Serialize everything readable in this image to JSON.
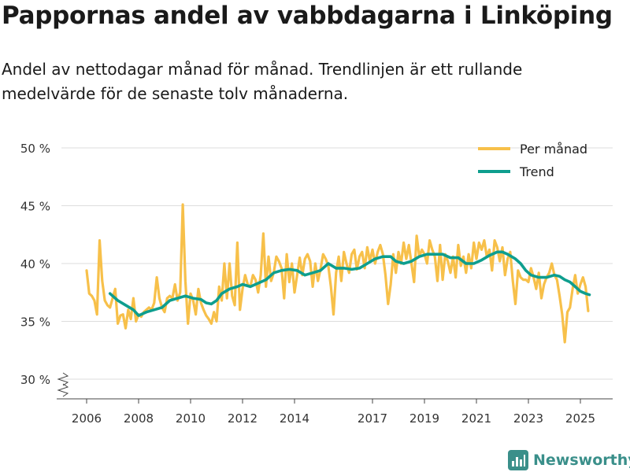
{
  "header": {
    "title": "Pappornas andel av vabbdagarna i Linköping",
    "subtitle": "Andel av nettodagar månad för månad. Trendlinjen är ett rullande medelvärde för de senaste tolv månaderna."
  },
  "brand": {
    "name": "Newsworthy",
    "color": "#3a8f8a"
  },
  "colors": {
    "monthly": "#f7c04a",
    "trend": "#0e9e8e",
    "grid": "#dddddd",
    "axis": "#333333"
  },
  "chart_data": {
    "type": "line",
    "title": "Pappornas andel av vabbdagarna i Linköping",
    "xlabel": "",
    "ylabel": "",
    "ylim": [
      30,
      50
    ],
    "xlim": [
      2005.7,
      2025.9
    ],
    "y_ticks": [
      30,
      35,
      40,
      45,
      50
    ],
    "y_tick_labels": [
      "30 %",
      "35 %",
      "40 %",
      "45 %",
      "50 %"
    ],
    "x_ticks": [
      2006,
      2008,
      2010,
      2012,
      2014,
      2017,
      2019,
      2021,
      2023,
      2025
    ],
    "x_tick_labels": [
      "2006",
      "2008",
      "2010",
      "2012",
      "2014",
      "2017",
      "2019",
      "2021",
      "2023",
      "2025"
    ],
    "grid": true,
    "legend_position": "top-right",
    "y_axis_break": true,
    "series": [
      {
        "name": "Per månad",
        "color": "#f7c04a",
        "points": [
          [
            2006.0,
            39.4
          ],
          [
            2006.1,
            37.4
          ],
          [
            2006.2,
            37.2
          ],
          [
            2006.3,
            36.8
          ],
          [
            2006.4,
            35.6
          ],
          [
            2006.5,
            42.0
          ],
          [
            2006.6,
            38.5
          ],
          [
            2006.7,
            36.8
          ],
          [
            2006.8,
            36.4
          ],
          [
            2006.9,
            36.2
          ],
          [
            2007.0,
            37.0
          ],
          [
            2007.1,
            37.8
          ],
          [
            2007.2,
            34.8
          ],
          [
            2007.3,
            35.5
          ],
          [
            2007.4,
            35.6
          ],
          [
            2007.5,
            34.4
          ],
          [
            2007.6,
            36.0
          ],
          [
            2007.7,
            35.2
          ],
          [
            2007.8,
            37.0
          ],
          [
            2007.9,
            35.0
          ],
          [
            2008.0,
            35.6
          ],
          [
            2008.1,
            35.4
          ],
          [
            2008.2,
            35.8
          ],
          [
            2008.3,
            36.0
          ],
          [
            2008.4,
            36.2
          ],
          [
            2008.5,
            36.0
          ],
          [
            2008.6,
            36.6
          ],
          [
            2008.7,
            38.8
          ],
          [
            2008.8,
            37.0
          ],
          [
            2008.9,
            36.2
          ],
          [
            2009.0,
            35.8
          ],
          [
            2009.1,
            37.0
          ],
          [
            2009.2,
            37.2
          ],
          [
            2009.3,
            37.0
          ],
          [
            2009.4,
            38.2
          ],
          [
            2009.5,
            36.8
          ],
          [
            2009.6,
            37.5
          ],
          [
            2009.7,
            45.1
          ],
          [
            2009.8,
            38.5
          ],
          [
            2009.9,
            34.8
          ],
          [
            2010.0,
            37.4
          ],
          [
            2010.1,
            36.8
          ],
          [
            2010.2,
            35.6
          ],
          [
            2010.3,
            37.8
          ],
          [
            2010.4,
            36.6
          ],
          [
            2010.5,
            36.0
          ],
          [
            2010.6,
            35.5
          ],
          [
            2010.7,
            35.2
          ],
          [
            2010.8,
            34.8
          ],
          [
            2010.9,
            35.8
          ],
          [
            2011.0,
            35.0
          ],
          [
            2011.1,
            38.0
          ],
          [
            2011.2,
            36.8
          ],
          [
            2011.3,
            40.0
          ],
          [
            2011.4,
            37.0
          ],
          [
            2011.5,
            40.0
          ],
          [
            2011.6,
            37.2
          ],
          [
            2011.7,
            36.4
          ],
          [
            2011.8,
            41.8
          ],
          [
            2011.9,
            36.0
          ],
          [
            2012.0,
            37.8
          ],
          [
            2012.1,
            39.0
          ],
          [
            2012.2,
            38.2
          ],
          [
            2012.3,
            38.0
          ],
          [
            2012.4,
            39.0
          ],
          [
            2012.5,
            38.6
          ],
          [
            2012.6,
            37.5
          ],
          [
            2012.7,
            39.0
          ],
          [
            2012.8,
            42.6
          ],
          [
            2012.9,
            38.0
          ],
          [
            2013.0,
            40.6
          ],
          [
            2013.1,
            38.5
          ],
          [
            2013.2,
            39.2
          ],
          [
            2013.3,
            40.6
          ],
          [
            2013.4,
            40.2
          ],
          [
            2013.5,
            39.6
          ],
          [
            2013.6,
            37.0
          ],
          [
            2013.7,
            40.8
          ],
          [
            2013.8,
            38.4
          ],
          [
            2013.9,
            40.0
          ],
          [
            2014.0,
            37.5
          ],
          [
            2014.1,
            39.0
          ],
          [
            2014.2,
            40.5
          ],
          [
            2014.3,
            39.0
          ],
          [
            2014.4,
            40.4
          ],
          [
            2014.5,
            40.8
          ],
          [
            2014.6,
            40.2
          ],
          [
            2014.7,
            38.0
          ],
          [
            2014.8,
            40.0
          ],
          [
            2014.9,
            38.5
          ],
          [
            2015.0,
            39.5
          ],
          [
            2015.1,
            40.8
          ],
          [
            2015.2,
            40.4
          ],
          [
            2015.3,
            39.8
          ],
          [
            2015.4,
            38.0
          ],
          [
            2015.5,
            35.6
          ],
          [
            2015.6,
            39.2
          ],
          [
            2015.7,
            40.6
          ],
          [
            2015.8,
            38.5
          ],
          [
            2015.9,
            41.0
          ],
          [
            2016.0,
            40.0
          ],
          [
            2016.1,
            39.2
          ],
          [
            2016.2,
            40.8
          ],
          [
            2016.3,
            41.2
          ],
          [
            2016.4,
            39.5
          ],
          [
            2016.5,
            40.6
          ],
          [
            2016.6,
            41.0
          ],
          [
            2016.7,
            39.6
          ],
          [
            2016.8,
            41.4
          ],
          [
            2016.9,
            40.2
          ],
          [
            2017.0,
            41.2
          ],
          [
            2017.1,
            40.0
          ],
          [
            2017.2,
            41.0
          ],
          [
            2017.3,
            41.6
          ],
          [
            2017.4,
            40.8
          ],
          [
            2017.5,
            39.0
          ],
          [
            2017.6,
            36.5
          ],
          [
            2017.7,
            38.2
          ],
          [
            2017.8,
            40.8
          ],
          [
            2017.9,
            39.2
          ],
          [
            2018.0,
            41.0
          ],
          [
            2018.1,
            40.0
          ],
          [
            2018.2,
            41.8
          ],
          [
            2018.3,
            40.4
          ],
          [
            2018.4,
            41.6
          ],
          [
            2018.5,
            40.0
          ],
          [
            2018.6,
            38.4
          ],
          [
            2018.7,
            42.4
          ],
          [
            2018.8,
            40.6
          ],
          [
            2018.9,
            41.2
          ],
          [
            2019.0,
            40.8
          ],
          [
            2019.1,
            40.0
          ],
          [
            2019.2,
            42.0
          ],
          [
            2019.3,
            41.2
          ],
          [
            2019.4,
            40.6
          ],
          [
            2019.5,
            38.5
          ],
          [
            2019.6,
            41.6
          ],
          [
            2019.7,
            38.6
          ],
          [
            2019.8,
            40.8
          ],
          [
            2019.9,
            40.2
          ],
          [
            2020.0,
            39.2
          ],
          [
            2020.1,
            40.6
          ],
          [
            2020.2,
            38.8
          ],
          [
            2020.3,
            41.6
          ],
          [
            2020.4,
            39.8
          ],
          [
            2020.5,
            40.6
          ],
          [
            2020.6,
            39.2
          ],
          [
            2020.7,
            40.8
          ],
          [
            2020.8,
            39.6
          ],
          [
            2020.9,
            41.8
          ],
          [
            2021.0,
            40.4
          ],
          [
            2021.1,
            41.8
          ],
          [
            2021.2,
            41.2
          ],
          [
            2021.3,
            42.0
          ],
          [
            2021.4,
            40.6
          ],
          [
            2021.5,
            41.2
          ],
          [
            2021.6,
            39.4
          ],
          [
            2021.7,
            42.0
          ],
          [
            2021.8,
            41.4
          ],
          [
            2021.9,
            40.2
          ],
          [
            2022.0,
            41.4
          ],
          [
            2022.1,
            39.0
          ],
          [
            2022.2,
            40.4
          ],
          [
            2022.3,
            41.0
          ],
          [
            2022.4,
            38.5
          ],
          [
            2022.5,
            36.5
          ],
          [
            2022.6,
            39.4
          ],
          [
            2022.7,
            38.8
          ],
          [
            2022.8,
            38.6
          ],
          [
            2022.9,
            38.6
          ],
          [
            2023.0,
            38.4
          ],
          [
            2023.1,
            39.6
          ],
          [
            2023.2,
            38.8
          ],
          [
            2023.3,
            37.8
          ],
          [
            2023.4,
            39.2
          ],
          [
            2023.5,
            37.0
          ],
          [
            2023.6,
            38.2
          ],
          [
            2023.7,
            38.8
          ],
          [
            2023.8,
            39.2
          ],
          [
            2023.9,
            40.0
          ],
          [
            2024.0,
            39.0
          ],
          [
            2024.1,
            38.6
          ],
          [
            2024.2,
            37.2
          ],
          [
            2024.3,
            35.6
          ],
          [
            2024.4,
            33.2
          ],
          [
            2024.5,
            35.8
          ],
          [
            2024.6,
            36.2
          ],
          [
            2024.7,
            37.8
          ],
          [
            2024.8,
            39.0
          ],
          [
            2024.9,
            37.4
          ],
          [
            2025.0,
            38.2
          ],
          [
            2025.1,
            38.8
          ],
          [
            2025.2,
            38.0
          ],
          [
            2025.3,
            35.9
          ]
        ]
      },
      {
        "name": "Trend",
        "color": "#0e9e8e",
        "points": [
          [
            2006.9,
            37.4
          ],
          [
            2007.2,
            36.8
          ],
          [
            2007.5,
            36.4
          ],
          [
            2007.8,
            36.0
          ],
          [
            2008.0,
            35.5
          ],
          [
            2008.3,
            35.8
          ],
          [
            2008.6,
            36.0
          ],
          [
            2008.9,
            36.2
          ],
          [
            2009.2,
            36.8
          ],
          [
            2009.5,
            37.0
          ],
          [
            2009.8,
            37.2
          ],
          [
            2010.1,
            37.0
          ],
          [
            2010.4,
            36.9
          ],
          [
            2010.6,
            36.6
          ],
          [
            2010.8,
            36.5
          ],
          [
            2011.0,
            36.8
          ],
          [
            2011.2,
            37.4
          ],
          [
            2011.5,
            37.8
          ],
          [
            2011.8,
            38.0
          ],
          [
            2012.0,
            38.2
          ],
          [
            2012.3,
            38.0
          ],
          [
            2012.6,
            38.3
          ],
          [
            2012.9,
            38.6
          ],
          [
            2013.2,
            39.2
          ],
          [
            2013.5,
            39.4
          ],
          [
            2013.8,
            39.5
          ],
          [
            2014.1,
            39.4
          ],
          [
            2014.4,
            39.0
          ],
          [
            2014.7,
            39.2
          ],
          [
            2015.0,
            39.4
          ],
          [
            2015.3,
            40.0
          ],
          [
            2015.6,
            39.6
          ],
          [
            2015.9,
            39.6
          ],
          [
            2016.2,
            39.5
          ],
          [
            2016.5,
            39.6
          ],
          [
            2016.8,
            40.0
          ],
          [
            2017.1,
            40.4
          ],
          [
            2017.4,
            40.6
          ],
          [
            2017.7,
            40.6
          ],
          [
            2017.9,
            40.2
          ],
          [
            2018.2,
            40.0
          ],
          [
            2018.5,
            40.2
          ],
          [
            2018.8,
            40.6
          ],
          [
            2019.1,
            40.8
          ],
          [
            2019.4,
            40.8
          ],
          [
            2019.7,
            40.8
          ],
          [
            2020.0,
            40.5
          ],
          [
            2020.3,
            40.5
          ],
          [
            2020.6,
            40.0
          ],
          [
            2020.9,
            40.0
          ],
          [
            2021.2,
            40.3
          ],
          [
            2021.5,
            40.7
          ],
          [
            2021.8,
            41.0
          ],
          [
            2022.0,
            41.0
          ],
          [
            2022.2,
            40.8
          ],
          [
            2022.5,
            40.4
          ],
          [
            2022.7,
            40.0
          ],
          [
            2022.9,
            39.4
          ],
          [
            2023.1,
            39.0
          ],
          [
            2023.4,
            38.8
          ],
          [
            2023.7,
            38.8
          ],
          [
            2024.0,
            39.0
          ],
          [
            2024.2,
            38.9
          ],
          [
            2024.4,
            38.6
          ],
          [
            2024.6,
            38.4
          ],
          [
            2024.8,
            38.0
          ],
          [
            2025.0,
            37.6
          ],
          [
            2025.2,
            37.4
          ],
          [
            2025.35,
            37.3
          ]
        ]
      }
    ]
  }
}
